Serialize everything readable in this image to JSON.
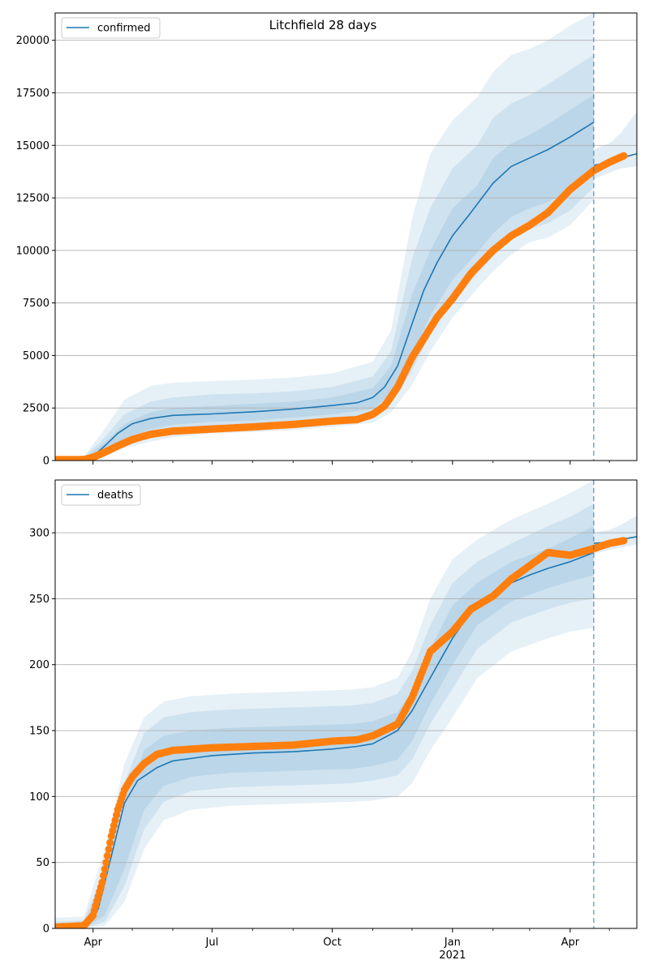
{
  "chart_data": [
    {
      "type": "line",
      "title": "Litchfield 28 days",
      "legend": [
        "confirmed"
      ],
      "legend_position": "top-left",
      "grid": "horizontal",
      "xlabel": "",
      "ylabel": "",
      "xlim": [
        "2020-03-03",
        "2021-05-22"
      ],
      "ylim": [
        0,
        21300
      ],
      "yticks": [
        0,
        2500,
        5000,
        7500,
        10000,
        12500,
        15000,
        17500,
        20000
      ],
      "ytick_labels": [
        "0",
        "2500",
        "5000",
        "7500",
        "10000",
        "12500",
        "15000",
        "17500",
        "20000"
      ],
      "forecast_start": "2021-04-19",
      "colors": {
        "model": "#1f77b4",
        "observed": "#ff7f0e",
        "band": "#1f77b4"
      },
      "series": [
        {
          "name": "confirmed",
          "role": "model median",
          "x": [
            "2020-03-03",
            "2020-03-25",
            "2020-04-01",
            "2020-04-10",
            "2020-04-20",
            "2020-05-01",
            "2020-05-15",
            "2020-06-01",
            "2020-07-01",
            "2020-08-01",
            "2020-09-01",
            "2020-10-01",
            "2020-10-20",
            "2020-11-01",
            "2020-11-10",
            "2020-11-20",
            "2020-12-01",
            "2020-12-10",
            "2020-12-20",
            "2021-01-01",
            "2021-01-15",
            "2021-02-01",
            "2021-02-15",
            "2021-03-01",
            "2021-03-15",
            "2021-04-01",
            "2021-04-19"
          ],
          "y": [
            0,
            80,
            200,
            700,
            1300,
            1750,
            2000,
            2150,
            2220,
            2320,
            2450,
            2620,
            2750,
            3000,
            3500,
            4500,
            6500,
            8100,
            9400,
            10700,
            11800,
            13200,
            14000,
            14400,
            14800,
            15400,
            16100
          ]
        },
        {
          "name": "observed",
          "role": "observed data",
          "x": [
            "2020-03-03",
            "2020-03-25",
            "2020-04-01",
            "2020-04-10",
            "2020-04-20",
            "2020-05-01",
            "2020-05-15",
            "2020-06-01",
            "2020-07-01",
            "2020-08-01",
            "2020-09-01",
            "2020-10-01",
            "2020-10-20",
            "2020-11-01",
            "2020-11-10",
            "2020-11-20",
            "2020-12-01",
            "2020-12-10",
            "2020-12-20",
            "2021-01-01",
            "2021-01-15",
            "2021-02-01",
            "2021-02-15",
            "2021-03-01",
            "2021-03-15",
            "2021-04-01",
            "2021-04-19",
            "2021-05-01",
            "2021-05-12"
          ],
          "y": [
            40,
            50,
            150,
            400,
            700,
            1000,
            1250,
            1400,
            1500,
            1600,
            1720,
            1880,
            1950,
            2200,
            2600,
            3500,
            4900,
            5800,
            6800,
            7700,
            8900,
            10000,
            10700,
            11200,
            11800,
            12900,
            13800,
            14200,
            14500
          ]
        },
        {
          "name": "",
          "role": "model after forecast start",
          "x": [
            "2021-04-19",
            "2021-05-01",
            "2021-05-10",
            "2021-05-22"
          ],
          "y": [
            14050,
            14200,
            14400,
            14600
          ]
        }
      ],
      "bands": [
        {
          "level": "outer",
          "x": [
            "2020-03-03",
            "2020-03-25",
            "2020-04-10",
            "2020-04-25",
            "2020-05-15",
            "2020-06-01",
            "2020-07-01",
            "2020-08-01",
            "2020-09-01",
            "2020-10-01",
            "2020-11-01",
            "2020-11-15",
            "2020-12-01",
            "2020-12-15",
            "2021-01-01",
            "2021-01-20",
            "2021-02-01",
            "2021-02-15",
            "2021-03-01",
            "2021-03-15",
            "2021-04-01",
            "2021-04-19"
          ],
          "upper": [
            0,
            200,
            1500,
            2900,
            3550,
            3700,
            3780,
            3850,
            3950,
            4150,
            4700,
            6200,
            11500,
            14600,
            16200,
            17300,
            18500,
            19300,
            19600,
            20000,
            20700,
            21300
          ],
          "lower": [
            0,
            30,
            180,
            600,
            900,
            1100,
            1300,
            1350,
            1450,
            1600,
            1800,
            2300,
            3600,
            5200,
            6800,
            8200,
            9000,
            9800,
            10400,
            10600,
            11200,
            12400
          ]
        },
        {
          "level": "middle",
          "x": [
            "2020-03-03",
            "2020-03-25",
            "2020-04-10",
            "2020-04-25",
            "2020-05-15",
            "2020-06-01",
            "2020-07-01",
            "2020-08-01",
            "2020-09-01",
            "2020-10-01",
            "2020-11-01",
            "2020-11-15",
            "2020-12-01",
            "2020-12-15",
            "2021-01-01",
            "2021-01-20",
            "2021-02-01",
            "2021-02-15",
            "2021-03-01",
            "2021-03-15",
            "2021-04-01",
            "2021-04-19"
          ],
          "upper": [
            0,
            150,
            1100,
            2200,
            2800,
            3000,
            3150,
            3200,
            3300,
            3500,
            4000,
            5200,
            9600,
            12000,
            13900,
            15000,
            16300,
            17000,
            17400,
            17900,
            18600,
            19300
          ],
          "lower": [
            0,
            50,
            300,
            800,
            1200,
            1450,
            1600,
            1650,
            1750,
            1900,
            2150,
            2700,
            4300,
            6000,
            7600,
            8900,
            9700,
            10500,
            11000,
            11300,
            11900,
            13000
          ]
        },
        {
          "level": "inner",
          "x": [
            "2020-03-03",
            "2020-03-25",
            "2020-04-10",
            "2020-04-25",
            "2020-05-15",
            "2020-06-01",
            "2020-07-01",
            "2020-08-01",
            "2020-09-01",
            "2020-10-01",
            "2020-11-01",
            "2020-11-15",
            "2020-12-01",
            "2020-12-15",
            "2021-01-01",
            "2021-01-20",
            "2021-02-01",
            "2021-02-15",
            "2021-03-01",
            "2021-03-15",
            "2021-04-01",
            "2021-04-19"
          ],
          "upper": [
            0,
            110,
            850,
            1750,
            2300,
            2500,
            2600,
            2700,
            2800,
            3000,
            3450,
            4500,
            7900,
            10000,
            12000,
            13100,
            14400,
            15100,
            15500,
            16000,
            16700,
            17400
          ],
          "lower": [
            0,
            60,
            450,
            1000,
            1500,
            1700,
            1850,
            1900,
            2050,
            2200,
            2450,
            3200,
            5000,
            6900,
            8600,
            9900,
            10800,
            11600,
            12000,
            12300,
            12900,
            13700
          ]
        },
        {
          "level": "forecast-tail",
          "x": [
            "2021-04-19",
            "2021-05-01",
            "2021-05-10",
            "2021-05-22"
          ],
          "upper": [
            14800,
            15100,
            15600,
            16600
          ],
          "lower": [
            13400,
            13700,
            13900,
            14000
          ]
        }
      ]
    },
    {
      "type": "line",
      "title": "",
      "legend": [
        "deaths"
      ],
      "legend_position": "top-left",
      "grid": "horizontal",
      "xlabel": "",
      "ylabel": "",
      "xlim": [
        "2020-03-03",
        "2021-05-22"
      ],
      "ylim": [
        0,
        340
      ],
      "yticks": [
        0,
        50,
        100,
        150,
        200,
        250,
        300
      ],
      "ytick_labels": [
        "0",
        "50",
        "100",
        "150",
        "200",
        "250",
        "300"
      ],
      "xticks": [
        "2020-04-01",
        "2020-07-01",
        "2020-10-01",
        "2021-01-01",
        "2021-04-01"
      ],
      "xtick_labels": [
        "Apr",
        "Jul",
        "Oct",
        "Jan",
        "Apr"
      ],
      "xtick_sublabel": "2021",
      "forecast_start": "2021-04-19",
      "series": [
        {
          "name": "deaths",
          "role": "model median",
          "x": [
            "2020-03-03",
            "2020-03-25",
            "2020-04-05",
            "2020-04-15",
            "2020-04-25",
            "2020-05-05",
            "2020-05-20",
            "2020-06-01",
            "2020-07-01",
            "2020-08-01",
            "2020-09-01",
            "2020-10-01",
            "2020-10-20",
            "2020-11-01",
            "2020-11-20",
            "2020-12-01",
            "2020-12-15",
            "2021-01-01",
            "2021-01-15",
            "2021-02-01",
            "2021-02-15",
            "2021-03-01",
            "2021-03-15",
            "2021-04-01",
            "2021-04-19"
          ],
          "y": [
            0,
            2,
            15,
            55,
            95,
            112,
            122,
            127,
            131,
            133,
            134,
            136,
            138,
            140,
            150,
            165,
            190,
            220,
            240,
            252,
            262,
            268,
            273,
            278,
            285
          ]
        },
        {
          "name": "observed",
          "role": "observed data",
          "x": [
            "2020-03-03",
            "2020-03-25",
            "2020-04-01",
            "2020-04-08",
            "2020-04-15",
            "2020-04-20",
            "2020-04-25",
            "2020-05-01",
            "2020-05-10",
            "2020-05-20",
            "2020-06-01",
            "2020-07-01",
            "2020-08-01",
            "2020-09-01",
            "2020-10-01",
            "2020-10-20",
            "2020-11-01",
            "2020-11-20",
            "2020-12-01",
            "2020-12-15",
            "2021-01-01",
            "2021-01-15",
            "2021-02-01",
            "2021-02-15",
            "2021-03-01",
            "2021-03-15",
            "2021-04-01",
            "2021-04-19",
            "2021-05-01",
            "2021-05-12"
          ],
          "y": [
            1,
            2,
            10,
            35,
            70,
            90,
            105,
            115,
            125,
            132,
            135,
            137,
            138,
            139,
            142,
            143,
            146,
            155,
            175,
            210,
            225,
            242,
            252,
            265,
            275,
            285,
            283,
            288,
            292,
            294
          ]
        },
        {
          "name": "",
          "role": "model after forecast start",
          "x": [
            "2021-04-19",
            "2021-05-01",
            "2021-05-10",
            "2021-05-22"
          ],
          "y": [
            292,
            293,
            295,
            297
          ]
        }
      ],
      "bands": [
        {
          "level": "outer",
          "x": [
            "2020-03-03",
            "2020-03-25",
            "2020-04-10",
            "2020-04-25",
            "2020-05-10",
            "2020-05-25",
            "2020-06-15",
            "2020-07-15",
            "2020-08-15",
            "2020-09-15",
            "2020-10-15",
            "2020-11-01",
            "2020-11-20",
            "2020-12-01",
            "2020-12-15",
            "2021-01-01",
            "2021-01-20",
            "2021-02-15",
            "2021-03-15",
            "2021-04-01",
            "2021-04-19"
          ],
          "upper": [
            8,
            9,
            60,
            125,
            160,
            172,
            176,
            178,
            179,
            180,
            181,
            183,
            190,
            210,
            250,
            280,
            295,
            310,
            322,
            330,
            340
          ],
          "lower": [
            0,
            0,
            2,
            20,
            60,
            82,
            90,
            93,
            94,
            95,
            96,
            97,
            100,
            110,
            135,
            160,
            190,
            210,
            220,
            225,
            228
          ]
        },
        {
          "level": "middle",
          "x": [
            "2020-03-03",
            "2020-03-25",
            "2020-04-10",
            "2020-04-25",
            "2020-05-10",
            "2020-05-25",
            "2020-06-15",
            "2020-07-15",
            "2020-08-15",
            "2020-09-15",
            "2020-10-15",
            "2020-11-01",
            "2020-11-20",
            "2020-12-01",
            "2020-12-15",
            "2021-01-01",
            "2021-01-20",
            "2021-02-15",
            "2021-03-15",
            "2021-04-01",
            "2021-04-19"
          ],
          "upper": [
            5,
            6,
            45,
            110,
            148,
            160,
            164,
            166,
            167,
            168,
            169,
            171,
            178,
            195,
            230,
            262,
            278,
            292,
            305,
            312,
            322
          ],
          "lower": [
            0,
            0,
            5,
            32,
            75,
            96,
            104,
            107,
            108,
            109,
            110,
            112,
            116,
            128,
            155,
            182,
            212,
            232,
            242,
            247,
            250
          ]
        },
        {
          "level": "inner",
          "x": [
            "2020-03-03",
            "2020-03-25",
            "2020-04-10",
            "2020-04-25",
            "2020-05-10",
            "2020-05-25",
            "2020-06-15",
            "2020-07-15",
            "2020-08-15",
            "2020-09-15",
            "2020-10-15",
            "2020-11-01",
            "2020-11-20",
            "2020-12-01",
            "2020-12-15",
            "2021-01-01",
            "2021-01-20",
            "2021-02-15",
            "2021-03-15",
            "2021-04-01",
            "2021-04-19"
          ],
          "upper": [
            3,
            4,
            34,
            95,
            135,
            146,
            150,
            152,
            153,
            154,
            155,
            157,
            164,
            180,
            212,
            245,
            262,
            278,
            288,
            296,
            305
          ],
          "lower": [
            0,
            0,
            10,
            45,
            90,
            108,
            115,
            118,
            119,
            120,
            121,
            123,
            128,
            142,
            170,
            200,
            230,
            248,
            258,
            263,
            268
          ]
        },
        {
          "level": "forecast-tail",
          "x": [
            "2021-04-19",
            "2021-05-01",
            "2021-05-10",
            "2021-05-22"
          ],
          "upper": [
            300,
            302,
            306,
            313
          ],
          "lower": [
            284,
            287,
            289,
            291
          ]
        }
      ]
    }
  ]
}
